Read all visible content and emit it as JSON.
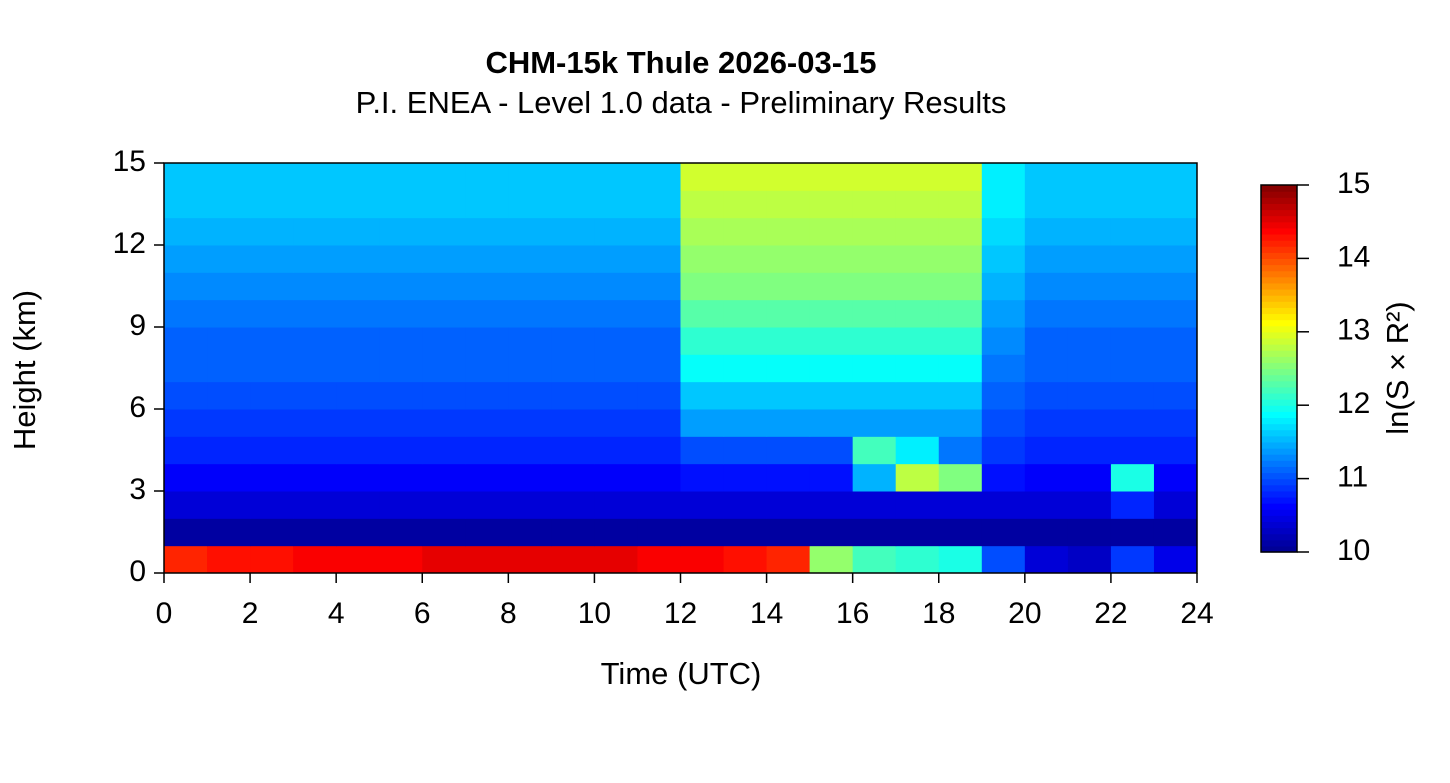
{
  "chart_data": {
    "type": "heatmap",
    "title": "CHM-15k Thule 2026-03-15",
    "subtitle": "P.I. ENEA - Level 1.0 data - Preliminary Results",
    "x_label": "Time (UTC)",
    "y_label": "Height (km)",
    "colorbar_label": "ln(S × R²)",
    "xbins": [
      0,
      1,
      2,
      3,
      4,
      5,
      6,
      7,
      8,
      9,
      10,
      11,
      12,
      13,
      14,
      15,
      16,
      17,
      18,
      19,
      20,
      21,
      22,
      23,
      24
    ],
    "ybins": [
      0,
      1,
      2,
      3,
      4,
      5,
      6,
      7,
      8,
      9,
      10,
      11,
      12,
      13,
      14,
      15
    ],
    "z": [
      [
        14.2,
        14.3,
        14.3,
        14.4,
        14.4,
        14.4,
        14.5,
        14.5,
        14.5,
        14.5,
        14.5,
        14.4,
        14.4,
        14.3,
        14.2,
        12.6,
        12.2,
        12.1,
        12.0,
        11.0,
        10.4,
        10.3,
        10.9,
        10.5
      ],
      [
        10.1,
        10.1,
        10.1,
        10.1,
        10.1,
        10.1,
        10.1,
        10.1,
        10.1,
        10.1,
        10.1,
        10.1,
        10.1,
        10.1,
        10.1,
        10.1,
        10.1,
        10.1,
        10.1,
        10.1,
        10.1,
        10.1,
        10.1,
        10.1
      ],
      [
        10.4,
        10.4,
        10.4,
        10.4,
        10.4,
        10.4,
        10.4,
        10.4,
        10.4,
        10.4,
        10.4,
        10.4,
        10.4,
        10.4,
        10.4,
        10.4,
        10.4,
        10.4,
        10.4,
        10.4,
        10.4,
        10.4,
        10.8,
        10.4
      ],
      [
        10.6,
        10.6,
        10.6,
        10.6,
        10.6,
        10.6,
        10.6,
        10.6,
        10.6,
        10.6,
        10.6,
        10.6,
        10.7,
        10.7,
        10.7,
        10.7,
        11.5,
        12.8,
        12.5,
        10.7,
        10.6,
        10.6,
        12.0,
        10.6
      ],
      [
        10.8,
        10.8,
        10.8,
        10.8,
        10.8,
        10.8,
        10.8,
        10.8,
        10.8,
        10.8,
        10.8,
        10.8,
        11.0,
        11.0,
        11.0,
        11.0,
        12.2,
        11.8,
        11.2,
        10.9,
        10.8,
        10.8,
        10.8,
        10.8
      ],
      [
        10.9,
        10.9,
        10.9,
        10.9,
        10.9,
        10.9,
        10.9,
        10.9,
        10.9,
        10.9,
        10.9,
        10.9,
        11.4,
        11.4,
        11.4,
        11.4,
        11.4,
        11.4,
        11.4,
        11.0,
        10.9,
        10.9,
        10.9,
        10.9
      ],
      [
        11.0,
        11.0,
        11.0,
        11.0,
        11.0,
        11.0,
        11.0,
        11.0,
        11.0,
        11.0,
        11.0,
        11.0,
        11.6,
        11.6,
        11.6,
        11.6,
        11.6,
        11.6,
        11.6,
        11.1,
        11.0,
        11.0,
        11.0,
        11.0
      ],
      [
        11.1,
        11.1,
        11.1,
        11.1,
        11.1,
        11.1,
        11.1,
        11.1,
        11.1,
        11.1,
        11.1,
        11.1,
        11.9,
        11.9,
        11.9,
        11.9,
        11.9,
        11.9,
        11.9,
        11.2,
        11.1,
        11.1,
        11.1,
        11.1
      ],
      [
        11.1,
        11.1,
        11.1,
        11.1,
        11.1,
        11.1,
        11.1,
        11.1,
        11.1,
        11.1,
        11.1,
        11.1,
        12.1,
        12.1,
        12.1,
        12.1,
        12.1,
        12.1,
        12.1,
        11.3,
        11.1,
        11.1,
        11.1,
        11.1
      ],
      [
        11.2,
        11.2,
        11.2,
        11.2,
        11.2,
        11.2,
        11.2,
        11.2,
        11.2,
        11.2,
        11.2,
        11.2,
        12.3,
        12.3,
        12.3,
        12.3,
        12.3,
        12.3,
        12.3,
        11.4,
        11.2,
        11.2,
        11.2,
        11.2
      ],
      [
        11.3,
        11.3,
        11.3,
        11.3,
        11.3,
        11.3,
        11.3,
        11.3,
        11.3,
        11.3,
        11.3,
        11.3,
        12.5,
        12.5,
        12.5,
        12.5,
        12.5,
        12.5,
        12.5,
        11.5,
        11.3,
        11.3,
        11.3,
        11.3
      ],
      [
        11.4,
        11.4,
        11.4,
        11.4,
        11.4,
        11.4,
        11.4,
        11.4,
        11.4,
        11.4,
        11.4,
        11.4,
        12.6,
        12.6,
        12.6,
        12.6,
        12.6,
        12.6,
        12.6,
        11.6,
        11.4,
        11.4,
        11.4,
        11.4
      ],
      [
        11.5,
        11.5,
        11.5,
        11.5,
        11.5,
        11.5,
        11.5,
        11.5,
        11.5,
        11.5,
        11.5,
        11.5,
        12.7,
        12.7,
        12.7,
        12.7,
        12.7,
        12.7,
        12.7,
        11.7,
        11.5,
        11.5,
        11.5,
        11.5
      ],
      [
        11.6,
        11.6,
        11.6,
        11.6,
        11.6,
        11.6,
        11.6,
        11.6,
        11.6,
        11.6,
        11.6,
        11.6,
        12.8,
        12.8,
        12.8,
        12.8,
        12.8,
        12.8,
        12.8,
        11.8,
        11.6,
        11.6,
        11.6,
        11.6
      ],
      [
        11.6,
        11.6,
        11.6,
        11.6,
        11.6,
        11.6,
        11.6,
        11.6,
        11.6,
        11.6,
        11.6,
        11.6,
        12.9,
        12.9,
        12.9,
        12.9,
        12.9,
        12.9,
        12.9,
        11.8,
        11.6,
        11.6,
        11.6,
        11.6
      ]
    ],
    "xlim": [
      0,
      24
    ],
    "xticks": [
      0,
      2,
      4,
      6,
      8,
      10,
      12,
      14,
      16,
      18,
      20,
      22,
      24
    ],
    "ylim": [
      0,
      15
    ],
    "yticks": [
      0,
      3,
      6,
      9,
      12,
      15
    ],
    "zlim": [
      10,
      15
    ],
    "zticks": [
      10,
      11,
      12,
      13,
      14,
      15
    ],
    "colormap": [
      "#00008f",
      "#0000ff",
      "#0080ff",
      "#00ffff",
      "#80ff80",
      "#ffff00",
      "#ff8000",
      "#ff0000",
      "#800000"
    ]
  }
}
